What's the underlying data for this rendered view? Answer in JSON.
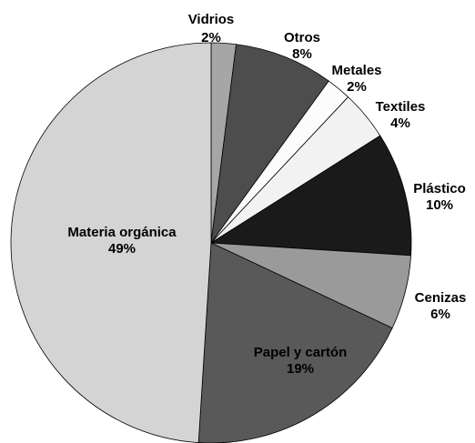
{
  "chart_data": {
    "type": "pie",
    "categories": [
      "Vidrios",
      "Otros",
      "Metales",
      "Textiles",
      "Plástico",
      "Cenizas",
      "Papel y cartón",
      "Materia orgánica"
    ],
    "values": [
      2,
      8,
      2,
      4,
      10,
      6,
      19,
      49
    ],
    "value_labels": [
      "2%",
      "8%",
      "2%",
      "4%",
      "10%",
      "6%",
      "19%",
      "49%"
    ],
    "colors": [
      "#a6a6a6",
      "#4d4d4d",
      "#fcfcfc",
      "#f2f2f2",
      "#1a1a1a",
      "#9a9a9a",
      "#595959",
      "#d4d4d4"
    ]
  }
}
